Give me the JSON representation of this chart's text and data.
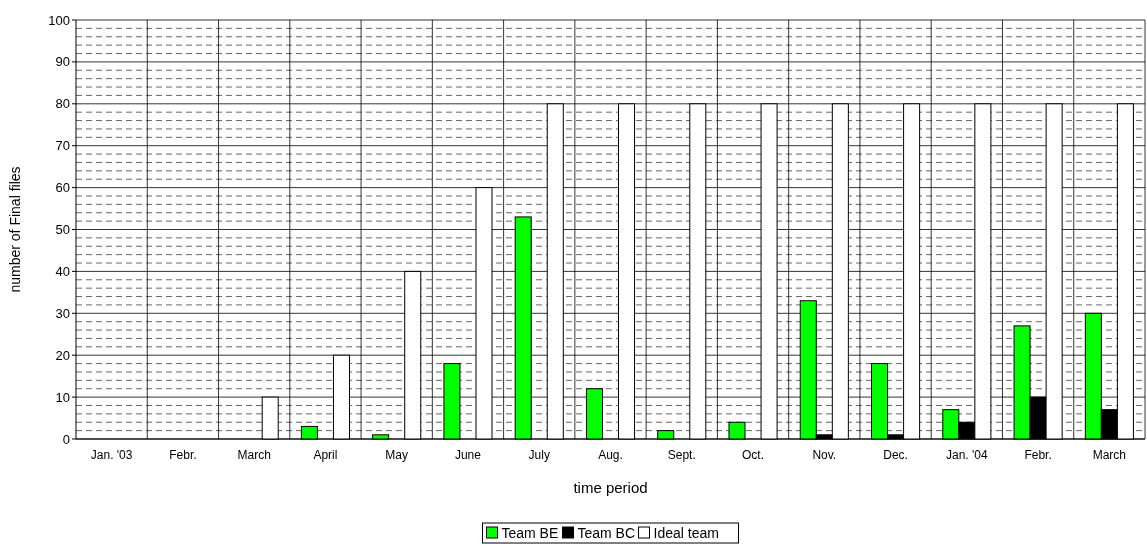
{
  "chart_data": {
    "type": "bar",
    "xlabel": "time period",
    "ylabel": "number of Final files",
    "categories": [
      "Jan. '03",
      "Febr.",
      "March",
      "April",
      "May",
      "June",
      "July",
      "Aug.",
      "Sept.",
      "Oct.",
      "Nov.",
      "Dec.",
      "Jan. '04",
      "Febr.",
      "March"
    ],
    "series": [
      {
        "name": "Team BE",
        "color": "#00ff00",
        "values": [
          0,
          0,
          0,
          3,
          1,
          18,
          53,
          12,
          2,
          4,
          33,
          18,
          7,
          27,
          30
        ]
      },
      {
        "name": "Team BC",
        "color": "#000000",
        "values": [
          0,
          0,
          0,
          0,
          0,
          0,
          0,
          0,
          0,
          0,
          1,
          1,
          4,
          10,
          7
        ]
      },
      {
        "name": "Ideal team",
        "color": "#ffffff",
        "values": [
          0,
          0,
          10,
          20,
          40,
          60,
          80,
          80,
          80,
          80,
          80,
          80,
          80,
          80,
          80
        ]
      }
    ],
    "ylim": [
      0,
      100
    ],
    "yticks": [
      0,
      {
        "value": 2,
        "label": null
      },
      {
        "value": 4,
        "label": null
      },
      {
        "value": 6,
        "label": null
      },
      {
        "value": 8,
        "label": null
      },
      10,
      {
        "value": 12,
        "label": null
      },
      {
        "value": 14,
        "label": null
      },
      {
        "value": 16,
        "label": null
      },
      {
        "value": 18,
        "label": null
      },
      20,
      {
        "value": 22,
        "label": null
      },
      {
        "value": 24,
        "label": null
      },
      {
        "value": 26,
        "label": null
      },
      {
        "value": 28,
        "label": null
      },
      30,
      {
        "value": 32,
        "label": null
      },
      {
        "value": 34,
        "label": null
      },
      {
        "value": 36,
        "label": null
      },
      {
        "value": 38,
        "label": null
      },
      40,
      {
        "value": 42,
        "label": null
      },
      {
        "value": 44,
        "label": null
      },
      {
        "value": 46,
        "label": null
      },
      {
        "value": 48,
        "label": null
      },
      50,
      {
        "value": 52,
        "label": null
      },
      {
        "value": 54,
        "label": null
      },
      {
        "value": 56,
        "label": null
      },
      {
        "value": 58,
        "label": null
      },
      60,
      {
        "value": 62,
        "label": null
      },
      {
        "value": 64,
        "label": null
      },
      {
        "value": 66,
        "label": null
      },
      {
        "value": 68,
        "label": null
      },
      70,
      {
        "value": 72,
        "label": null
      },
      {
        "value": 74,
        "label": null
      },
      {
        "value": 76,
        "label": null
      },
      {
        "value": 78,
        "label": null
      },
      80,
      {
        "value": 82,
        "label": null
      },
      {
        "value": 84,
        "label": null
      },
      {
        "value": 86,
        "label": null
      },
      {
        "value": 88,
        "label": null
      },
      90,
      {
        "value": 92,
        "label": null
      },
      {
        "value": 94,
        "label": null
      },
      {
        "value": 96,
        "label": null
      },
      {
        "value": 98,
        "label": null
      },
      100
    ],
    "grid": true,
    "legend": "bottom"
  }
}
